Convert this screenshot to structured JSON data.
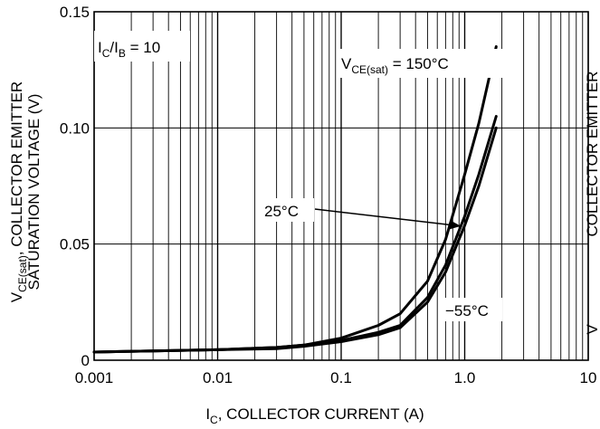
{
  "chart_data": {
    "type": "line",
    "xscale": "log",
    "xlim": [
      0.001,
      10
    ],
    "ylim": [
      0,
      0.15
    ],
    "grid": true,
    "x_ticks": [
      {
        "value": 0.001,
        "label": "0.001"
      },
      {
        "value": 0.01,
        "label": "0.01"
      },
      {
        "value": 0.1,
        "label": "0.1"
      },
      {
        "value": 1,
        "label": "1.0"
      },
      {
        "value": 10,
        "label": "10"
      }
    ],
    "y_ticks": [
      {
        "value": 0,
        "label": "0"
      },
      {
        "value": 0.05,
        "label": "0.05"
      },
      {
        "value": 0.1,
        "label": "0.10"
      },
      {
        "value": 0.15,
        "label": "0.15"
      }
    ],
    "xlabel": {
      "main": "I",
      "sub": "C",
      "rest": ", COLLECTOR CURRENT (A)"
    },
    "ylabel_line1": {
      "main": "V",
      "sub": "CE(sat)",
      "rest": ", COLLECTOR EMITTER"
    },
    "ylabel_line2": "SATURATION VOLTAGE (V)",
    "right_label": {
      "main": "V",
      "rest": "COLLECTOR EMITTER"
    },
    "condition": {
      "p1": "I",
      "s1": "C",
      "p2": "/I",
      "s2": "B",
      "p3": " = 10"
    },
    "series": [
      {
        "name": "150°C",
        "label": {
          "main": "V",
          "sub": "CE(sat)",
          "rest": " = 150°C"
        },
        "x": [
          0.001,
          0.003,
          0.01,
          0.03,
          0.05,
          0.1,
          0.2,
          0.3,
          0.5,
          0.7,
          1.0,
          1.3,
          1.8
        ],
        "y": [
          0.0035,
          0.004,
          0.0045,
          0.0055,
          0.0065,
          0.0095,
          0.015,
          0.02,
          0.034,
          0.052,
          0.08,
          0.102,
          0.135
        ]
      },
      {
        "name": "25°C",
        "label": {
          "main": "25°C"
        },
        "x": [
          0.001,
          0.003,
          0.01,
          0.03,
          0.05,
          0.1,
          0.2,
          0.3,
          0.5,
          0.7,
          1.0,
          1.3,
          1.8
        ],
        "y": [
          0.0035,
          0.004,
          0.0045,
          0.0055,
          0.0065,
          0.0085,
          0.012,
          0.015,
          0.027,
          0.041,
          0.062,
          0.08,
          0.105
        ]
      },
      {
        "name": "−55°C",
        "label": {
          "main": "−55°C"
        },
        "x": [
          0.001,
          0.003,
          0.01,
          0.03,
          0.05,
          0.1,
          0.2,
          0.3,
          0.5,
          0.7,
          1.0,
          1.3,
          1.8
        ],
        "y": [
          0.0035,
          0.004,
          0.0045,
          0.005,
          0.006,
          0.008,
          0.011,
          0.014,
          0.025,
          0.038,
          0.058,
          0.075,
          0.1
        ]
      }
    ]
  }
}
